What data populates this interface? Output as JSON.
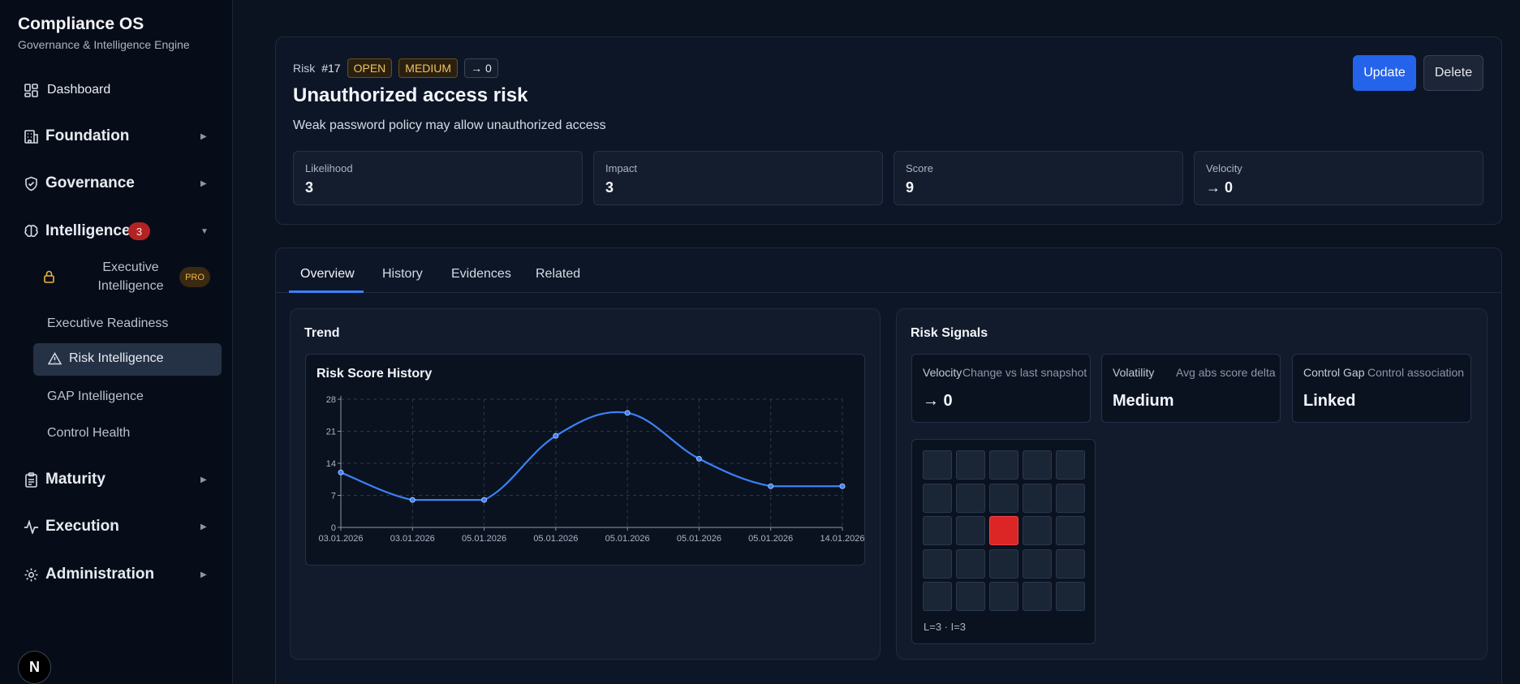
{
  "app": {
    "title": "Compliance OS",
    "subtitle": "Governance & Intelligence Engine"
  },
  "sidebar": {
    "dashboard": "Dashboard",
    "sections": {
      "foundation": "Foundation",
      "governance": "Governance",
      "intelligence": "Intelligence",
      "intelligence_count": "3",
      "maturity": "Maturity",
      "execution": "Execution",
      "administration": "Administration"
    },
    "intelligence_items": {
      "executive_intelligence": "Executive Intelligence",
      "pro_badge": "PRO",
      "executive_readiness": "Executive Readiness",
      "risk_intelligence": "Risk Intelligence",
      "gap_intelligence": "GAP Intelligence",
      "control_health": "Control Health"
    },
    "footer_logo": "N"
  },
  "risk": {
    "label": "Risk",
    "number": "#17",
    "status": "OPEN",
    "severity": "MEDIUM",
    "velocity_tag": "→ 0",
    "title": "Unauthorized access risk",
    "description": "Weak password policy may allow unauthorized access",
    "update_label": "Update",
    "delete_label": "Delete",
    "metrics": {
      "likelihood_label": "Likelihood",
      "likelihood_value": "3",
      "impact_label": "Impact",
      "impact_value": "3",
      "score_label": "Score",
      "score_value": "9",
      "velocity_label": "Velocity",
      "velocity_value": "→ 0"
    }
  },
  "tabs": {
    "overview": "Overview",
    "history": "History",
    "evidences": "Evidences",
    "related": "Related"
  },
  "trend": {
    "title": "Trend",
    "chart_title": "Risk Score History"
  },
  "signals": {
    "title": "Risk Signals",
    "velocity_label": "Velocity",
    "velocity_hint": "Change vs last snapshot",
    "velocity_value": "→ 0",
    "volatility_label": "Volatility",
    "volatility_hint": "Avg abs score delta",
    "volatility_value": "Medium",
    "control_gap_label": "Control Gap",
    "control_gap_hint": "Control association",
    "control_gap_value": "Linked",
    "heatmap_caption": "L=3 · I=3",
    "heatmap_likelihood": 3,
    "heatmap_impact": 3
  },
  "colors": {
    "accent": "#3b82f6",
    "primary_button": "#2563eb",
    "hot_cell": "#dc2626",
    "warning_tag": "#f0c35a"
  },
  "chart_data": {
    "type": "line",
    "title": "Risk Score History",
    "x": [
      "03.01.2026",
      "03.01.2026",
      "05.01.2026",
      "05.01.2026",
      "05.01.2026",
      "05.01.2026",
      "05.01.2026",
      "14.01.2026"
    ],
    "series": [
      {
        "values": [
          12,
          6,
          6,
          20,
          25,
          15,
          9,
          9
        ]
      }
    ],
    "yticks": [
      0,
      7,
      14,
      21,
      28
    ],
    "ylim": [
      0,
      28
    ],
    "grid": true
  }
}
